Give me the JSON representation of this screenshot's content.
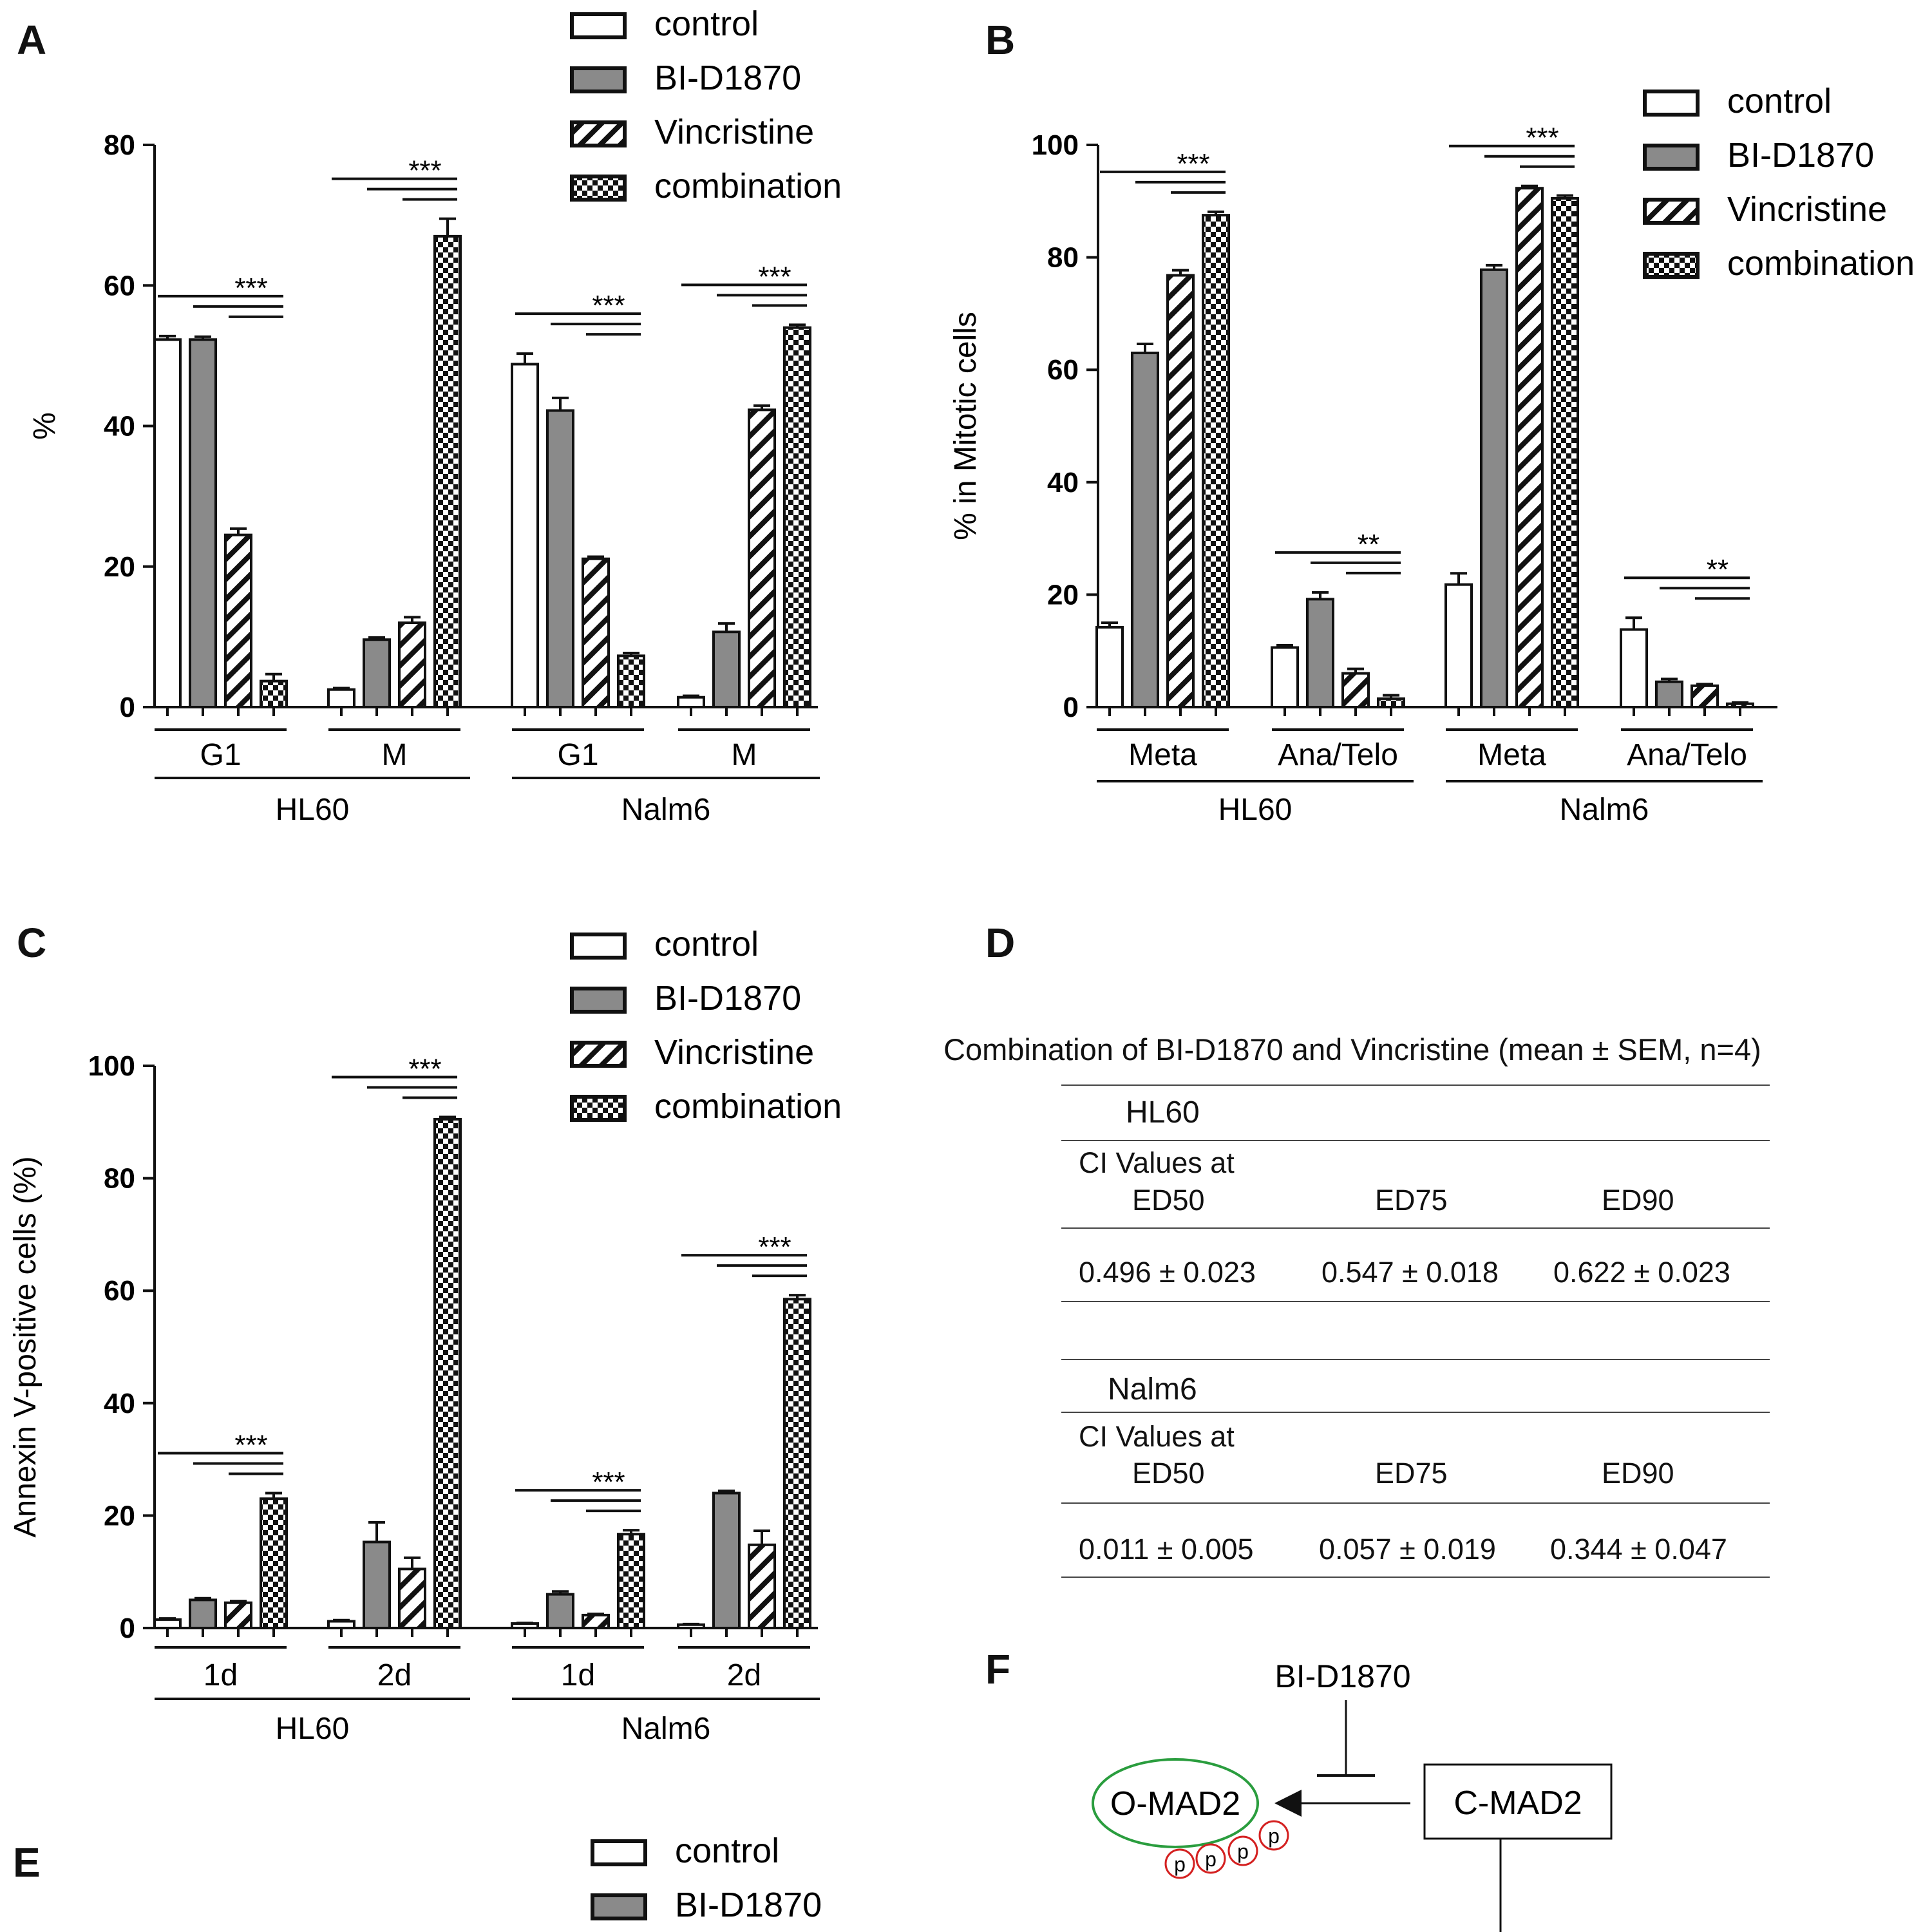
{
  "panels": {
    "A": {
      "letter": "A"
    },
    "B": {
      "letter": "B"
    },
    "C": {
      "letter": "C"
    },
    "D": {
      "letter": "D"
    },
    "E": {
      "letter": "E"
    },
    "F": {
      "letter": "F"
    }
  },
  "legend_labels": [
    "control",
    "BI-D1870",
    "Vincristine",
    "combination"
  ],
  "chart_data": [
    {
      "id": "A",
      "type": "bar",
      "ylabel": "%",
      "ylim": [
        0,
        80
      ],
      "yticks": [
        0,
        20,
        40,
        60,
        80
      ],
      "series_names": [
        "control",
        "BI-D1870",
        "Vincristine",
        "combination"
      ],
      "groups": [
        {
          "label": "G1",
          "cell_line": "HL60",
          "values": [
            52.3,
            52.3,
            24.5,
            3.7
          ],
          "errors": [
            0.5,
            0.4,
            0.9,
            1.0
          ],
          "sig": "***"
        },
        {
          "label": "M",
          "cell_line": "HL60",
          "values": [
            2.5,
            9.6,
            12.0,
            67.0
          ],
          "errors": [
            0.2,
            0.3,
            0.8,
            2.5
          ],
          "sig": "***"
        },
        {
          "label": "G1",
          "cell_line": "Nalm6",
          "values": [
            48.8,
            42.2,
            21.1,
            7.3
          ],
          "errors": [
            1.5,
            1.8,
            0.3,
            0.4
          ],
          "sig": "***"
        },
        {
          "label": "M",
          "cell_line": "Nalm6",
          "values": [
            1.4,
            10.7,
            42.3,
            54.0
          ],
          "errors": [
            0.2,
            1.2,
            0.6,
            0.4
          ],
          "sig": "***"
        }
      ],
      "cell_lines": [
        "HL60",
        "Nalm6"
      ]
    },
    {
      "id": "B",
      "type": "bar",
      "ylabel": "% in Mitotic cells",
      "ylim": [
        0,
        100
      ],
      "yticks": [
        0,
        20,
        40,
        60,
        80,
        100
      ],
      "series_names": [
        "control",
        "BI-D1870",
        "Vincristine",
        "combination"
      ],
      "groups": [
        {
          "label": "Meta",
          "cell_line": "HL60",
          "values": [
            14.2,
            63.0,
            76.8,
            87.5
          ],
          "errors": [
            0.8,
            1.6,
            0.9,
            0.6
          ],
          "sig": "***"
        },
        {
          "label": "Ana/Telo",
          "cell_line": "HL60",
          "values": [
            10.6,
            19.2,
            6.0,
            1.5
          ],
          "errors": [
            0.4,
            1.2,
            0.8,
            0.6
          ],
          "sig": "**"
        },
        {
          "label": "Meta",
          "cell_line": "Nalm6",
          "values": [
            21.8,
            77.8,
            92.3,
            90.5
          ],
          "errors": [
            2.0,
            0.8,
            0.4,
            0.5
          ],
          "sig": "***"
        },
        {
          "label": "Ana/Telo",
          "cell_line": "Nalm6",
          "values": [
            13.8,
            4.5,
            3.8,
            0.6
          ],
          "errors": [
            2.1,
            0.5,
            0.3,
            0.2
          ],
          "sig": "**"
        }
      ],
      "cell_lines": [
        "HL60",
        "Nalm6"
      ]
    },
    {
      "id": "C",
      "type": "bar",
      "ylabel": "Annexin V-positive cells (%)",
      "ylim": [
        0,
        100
      ],
      "yticks": [
        0,
        20,
        40,
        60,
        80,
        100
      ],
      "series_names": [
        "control",
        "BI-D1870",
        "Vincristine",
        "combination"
      ],
      "groups": [
        {
          "label": "1d",
          "cell_line": "HL60",
          "values": [
            1.5,
            5.0,
            4.5,
            23.0
          ],
          "errors": [
            0.2,
            0.3,
            0.3,
            1.0
          ],
          "sig": "***"
        },
        {
          "label": "2d",
          "cell_line": "HL60",
          "values": [
            1.2,
            15.3,
            10.5,
            90.5
          ],
          "errors": [
            0.2,
            3.5,
            2.0,
            0.4
          ],
          "sig": "***"
        },
        {
          "label": "1d",
          "cell_line": "Nalm6",
          "values": [
            0.8,
            6.0,
            2.3,
            16.7
          ],
          "errors": [
            0.1,
            0.5,
            0.2,
            0.7
          ],
          "sig": "***"
        },
        {
          "label": "2d",
          "cell_line": "Nalm6",
          "values": [
            0.6,
            24.0,
            14.8,
            58.5
          ],
          "errors": [
            0.1,
            0.4,
            2.5,
            0.7
          ],
          "sig": "***"
        }
      ],
      "cell_lines": [
        "HL60",
        "Nalm6"
      ]
    }
  ],
  "table": {
    "title": "Combination of BI-D1870 and Vincristine (mean ± SEM, n=4)",
    "sections": [
      {
        "name": "HL60",
        "ci_line1": "CI Values at",
        "headers": [
          "ED50",
          "ED75",
          "ED90"
        ],
        "values": [
          "0.496 ± 0.023",
          "0.547 ± 0.018",
          "0.622 ± 0.023"
        ]
      },
      {
        "name": "Nalm6",
        "ci_line1": "CI Values at",
        "headers": [
          "ED50",
          "ED75",
          "ED90"
        ],
        "values": [
          "0.011 ± 0.005",
          "0.057 ± 0.019",
          "0.344 ± 0.047"
        ]
      }
    ]
  },
  "diagram": {
    "inhibitor": "BI-D1870",
    "omad2": "O-MAD2",
    "cmad2": "C-MAD2",
    "phospho": [
      "p",
      "p",
      "p",
      "p"
    ]
  },
  "panel_e_legend": [
    "control",
    "BI-D1870"
  ]
}
